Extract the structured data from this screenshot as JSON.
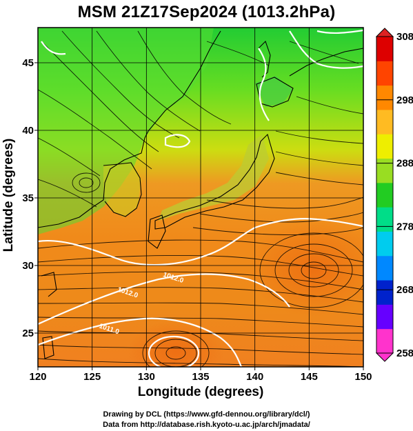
{
  "title": "MSM 21Z17Sep2024 (1013.2hPa)",
  "xlabel": "Longitude (degrees)",
  "ylabel": "Latitude  (degrees)",
  "credits": [
    "Drawing by DCL (https://www.gfd-dennou.org/library/dcl/)",
    "Data from http://database.rish.kyoto-u.ac.jp/arch/jmadata/"
  ],
  "map": {
    "lon_range": [
      120,
      150
    ],
    "lat_range": [
      22.5,
      47.6
    ],
    "x_ticks": [
      120,
      125,
      130,
      135,
      140,
      145,
      150
    ],
    "y_ticks": [
      25,
      30,
      35,
      40,
      45
    ],
    "gridlines": true
  },
  "colorbar": {
    "min": 258,
    "max": 308,
    "tick_labels": [
      308,
      298,
      288,
      278,
      268,
      258
    ],
    "colors": [
      "#ff33cc",
      "#6600ff",
      "#0022cc",
      "#0088ff",
      "#00ccee",
      "#00dd88",
      "#22cc22",
      "#99dd22",
      "#eeee00",
      "#ffbb22",
      "#ff8800",
      "#ff4400",
      "#dd0000"
    ]
  },
  "contour_labels": [
    {
      "text": "1012.0",
      "lon": 131.5,
      "lat": 29.2
    },
    {
      "text": "1012.0",
      "lon": 127.3,
      "lat": 28.1
    },
    {
      "text": "1011.0",
      "lon": 125.6,
      "lat": 25.4
    }
  ],
  "icons": {
    "colorbar_top": "triangle-up-icon",
    "colorbar_bottom": "triangle-down-icon"
  }
}
